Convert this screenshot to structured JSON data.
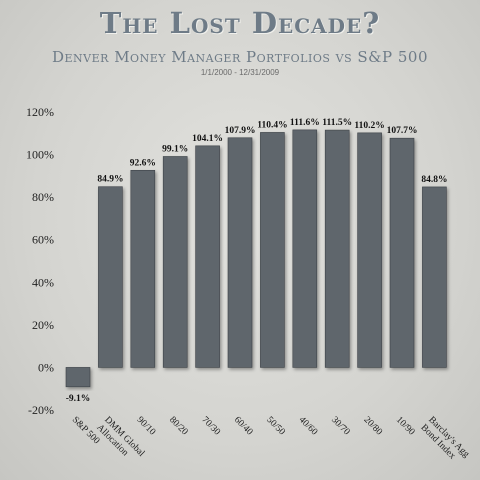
{
  "header": {
    "title": "The Lost Decade?",
    "subtitle": "Denver Money Manager Portfolios vs S&P 500",
    "date_range": "1/1/2000 - 12/31/2009"
  },
  "colors": {
    "bar": "#5f666c",
    "bar_edge": "#3d4247",
    "title": "#6e7b87"
  },
  "chart_data": {
    "type": "bar",
    "title": "The Lost Decade?",
    "subtitle": "Denver Money Manager Portfolios vs S&P 500",
    "xlabel": "",
    "ylabel": "",
    "categories": [
      "S&P 500",
      "DMM Global Allocation",
      "90/10",
      "80/20",
      "70/30",
      "60/40",
      "50/50",
      "40/60",
      "30/70",
      "20/80",
      "10/90",
      "Barclay's Agg Bond Index"
    ],
    "x_tick_lines": [
      [
        "S&P 500"
      ],
      [
        "DMM Global",
        "Allocation"
      ],
      [
        "90/10"
      ],
      [
        "80/20"
      ],
      [
        "70/30"
      ],
      [
        "60/40"
      ],
      [
        "50/50"
      ],
      [
        "40/60"
      ],
      [
        "30/70"
      ],
      [
        "20/80"
      ],
      [
        "10/90"
      ],
      [
        "Barclay's Agg",
        "Bond Index"
      ]
    ],
    "values": [
      -9.1,
      84.9,
      92.6,
      99.1,
      104.1,
      107.9,
      110.4,
      111.6,
      111.5,
      110.2,
      107.7,
      84.8
    ],
    "data_labels": [
      "-9.1%",
      "84.9%",
      "92.6%",
      "99.1%",
      "104.1%",
      "107.9%",
      "110.4%",
      "111.6%",
      "111.5%",
      "110.2%",
      "107.7%",
      "84.8%"
    ],
    "ylim": [
      -20,
      120
    ],
    "yticks": [
      -20,
      0,
      20,
      40,
      60,
      80,
      100,
      120
    ],
    "ytick_labels": [
      "-20%",
      "0%",
      "20%",
      "40%",
      "60%",
      "80%",
      "100%",
      "120%"
    ],
    "grid": false,
    "legend": "none"
  }
}
